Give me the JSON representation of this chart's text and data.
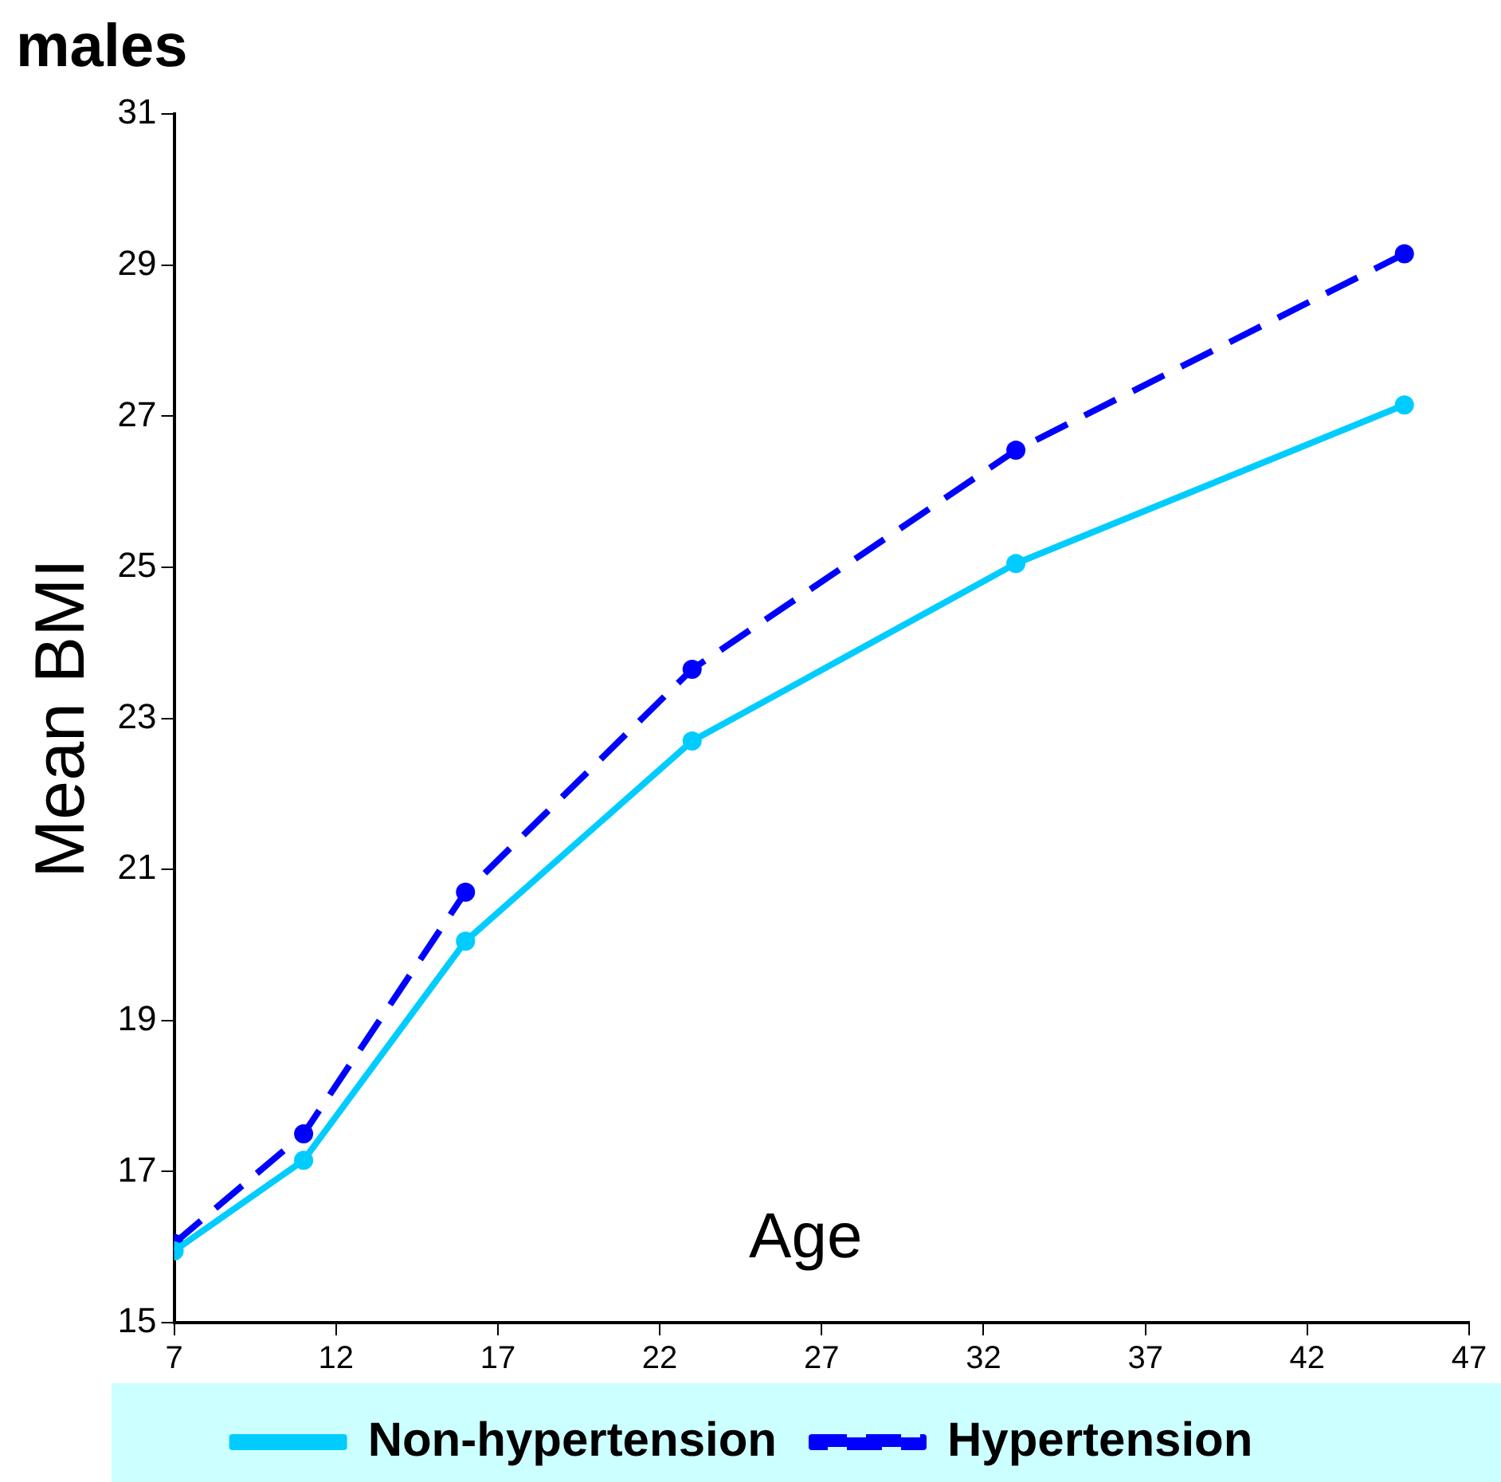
{
  "chart_data": {
    "type": "line",
    "title": "males",
    "xlabel": "Age",
    "ylabel": "Mean BMI",
    "x": [
      7,
      11,
      16,
      23,
      33,
      45
    ],
    "series": [
      {
        "name": "Non-hypertension",
        "color": "#00ccff",
        "line_style": "solid",
        "values": [
          15.95,
          17.15,
          20.05,
          22.7,
          25.05,
          27.15
        ]
      },
      {
        "name": "Hypertension",
        "color": "#0000ff",
        "line_style": "dashed",
        "values": [
          16.05,
          17.5,
          20.7,
          23.65,
          26.55,
          29.15
        ]
      }
    ],
    "xlim": [
      7,
      47
    ],
    "xticks": [
      7,
      12,
      17,
      22,
      27,
      32,
      37,
      42,
      47
    ],
    "ylim": [
      15,
      31
    ],
    "yticks": [
      15,
      17,
      19,
      21,
      23,
      25,
      27,
      29,
      31
    ],
    "grid": false,
    "legend": "bottom",
    "marker": "circle"
  }
}
